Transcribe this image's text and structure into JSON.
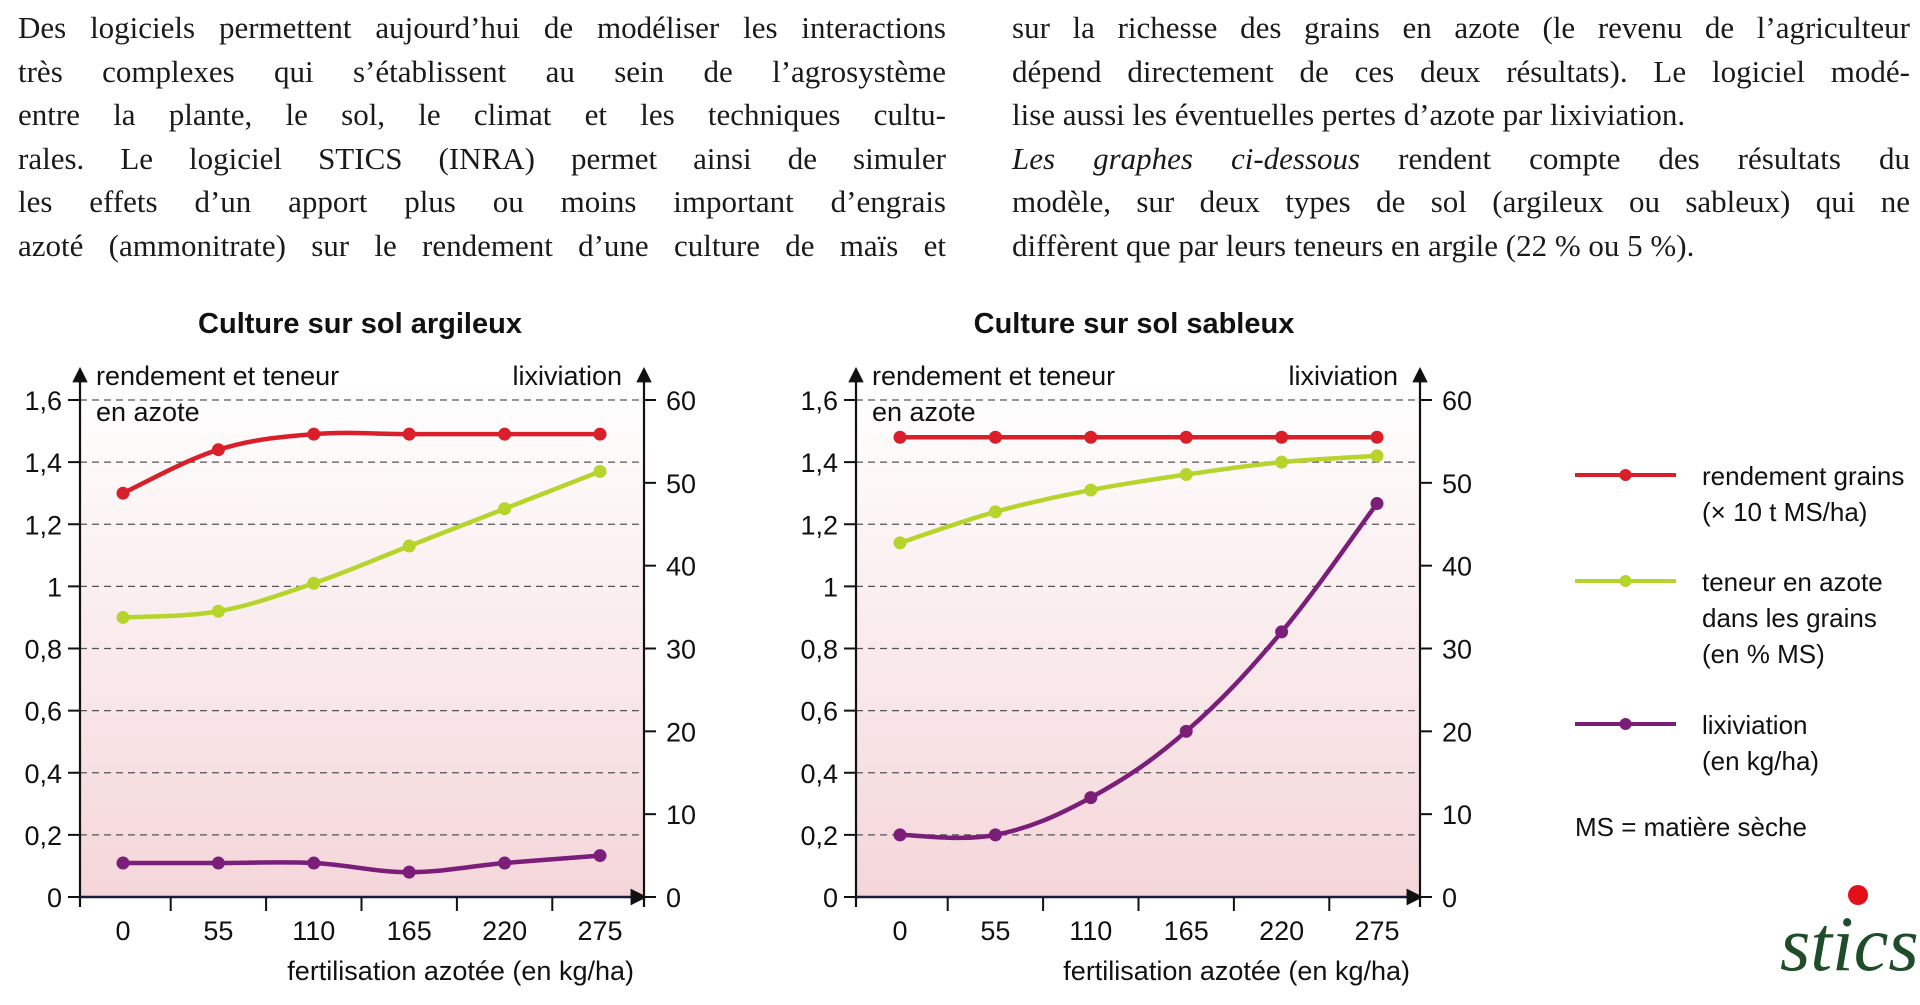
{
  "text": {
    "left_lines": [
      "Des logiciels permettent aujourd’hui de modéliser les interactions",
      "très complexes qui s’établissent au sein de l’agrosystème",
      "entre la plante, le sol, le climat et les techniques cultu-",
      "rales. Le logiciel STICS (INRA) permet ainsi de simuler",
      "les effets d’un apport plus ou moins important d’engrais",
      "azoté (ammonitrate) sur le rendement d’une culture de maïs et"
    ],
    "right_lines": [
      "sur la richesse des grains en azote (le revenu de l’agriculteur",
      "dépend directement de ces deux résultats). Le logiciel modé-",
      "lise aussi les éventuelles pertes d’azote par lixiviation."
    ],
    "right_line4_italic": "Les graphes ci-dessous",
    "right_line4_rest": " rendent compte des résultats du",
    "right_lines_tail": [
      "modèle, sur deux types de sol (argileux ou sableux) qui ne",
      "diffèrent que par leurs teneurs en argile (22 % ou 5 %)."
    ]
  },
  "legend": {
    "items": [
      {
        "label_lines": [
          "rendement grains",
          "(× 10 t MS/ha)"
        ],
        "color": "#d9202a"
      },
      {
        "label_lines": [
          "teneur en azote",
          "dans les grains",
          "(en % MS)"
        ],
        "color": "#b5d42c"
      },
      {
        "label_lines": [
          "lixiviation",
          "(en kg/ha)"
        ],
        "color": "#7a1e7a"
      }
    ],
    "note": "MS = matière sèche"
  },
  "logo": {
    "text": "stics",
    "dot_color": "#e3101a"
  },
  "colors": {
    "plot_bg_top": "#ffffff",
    "plot_bg_bottom": "#f4d6da",
    "grid": "#555555"
  },
  "chart_data": [
    {
      "type": "line",
      "title": "Culture sur sol argileux",
      "xlabel": "fertilisation azotée (en kg/ha)",
      "ylabel_left": [
        "rendement et teneur",
        "en azote"
      ],
      "ylabel_right": "lixiviation",
      "x": [
        0,
        55,
        110,
        165,
        220,
        275
      ],
      "x_tick_labels": [
        "0",
        "55",
        "110",
        "165",
        "220",
        "275"
      ],
      "ylim_left": [
        0,
        1.6
      ],
      "y_left_ticks": [
        "0",
        "0,2",
        "0,4",
        "0,6",
        "0,8",
        "1",
        "1,2",
        "1,4",
        "1,6"
      ],
      "ylim_right": [
        0,
        60
      ],
      "y_right_ticks": [
        "0",
        "10",
        "20",
        "30",
        "40",
        "50",
        "60"
      ],
      "grid": true,
      "series": [
        {
          "name": "rendement grains (× 10 t MS/ha)",
          "axis": "left",
          "color": "#d9202a",
          "values": [
            1.3,
            1.44,
            1.49,
            1.49,
            1.49,
            1.49
          ]
        },
        {
          "name": "teneur en azote dans les grains (en % MS)",
          "axis": "left",
          "color": "#b5d42c",
          "values": [
            0.9,
            0.92,
            1.01,
            1.13,
            1.25,
            1.37
          ]
        },
        {
          "name": "lixiviation (en kg/ha)",
          "axis": "right",
          "color": "#7a1e7a",
          "values": [
            4.1,
            4.1,
            4.1,
            3.0,
            4.1,
            5.0
          ]
        }
      ]
    },
    {
      "type": "line",
      "title": "Culture sur sol sableux",
      "xlabel": "fertilisation azotée (en kg/ha)",
      "ylabel_left": [
        "rendement et teneur",
        "en azote"
      ],
      "ylabel_right": "lixiviation",
      "x": [
        0,
        55,
        110,
        165,
        220,
        275
      ],
      "x_tick_labels": [
        "0",
        "55",
        "110",
        "165",
        "220",
        "275"
      ],
      "ylim_left": [
        0,
        1.6
      ],
      "y_left_ticks": [
        "0",
        "0,2",
        "0,4",
        "0,6",
        "0,8",
        "1",
        "1,2",
        "1,4",
        "1,6"
      ],
      "ylim_right": [
        0,
        60
      ],
      "y_right_ticks": [
        "0",
        "10",
        "20",
        "30",
        "40",
        "50",
        "60"
      ],
      "grid": true,
      "series": [
        {
          "name": "rendement grains (× 10 t MS/ha)",
          "axis": "left",
          "color": "#d9202a",
          "values": [
            1.48,
            1.48,
            1.48,
            1.48,
            1.48,
            1.48
          ]
        },
        {
          "name": "teneur en azote dans les grains (en % MS)",
          "axis": "left",
          "color": "#b5d42c",
          "values": [
            1.14,
            1.24,
            1.31,
            1.36,
            1.4,
            1.42
          ]
        },
        {
          "name": "lixiviation (en kg/ha)",
          "axis": "right",
          "color": "#7a1e7a",
          "values": [
            7.5,
            7.5,
            12.0,
            20.0,
            32.0,
            47.5
          ]
        }
      ]
    }
  ]
}
